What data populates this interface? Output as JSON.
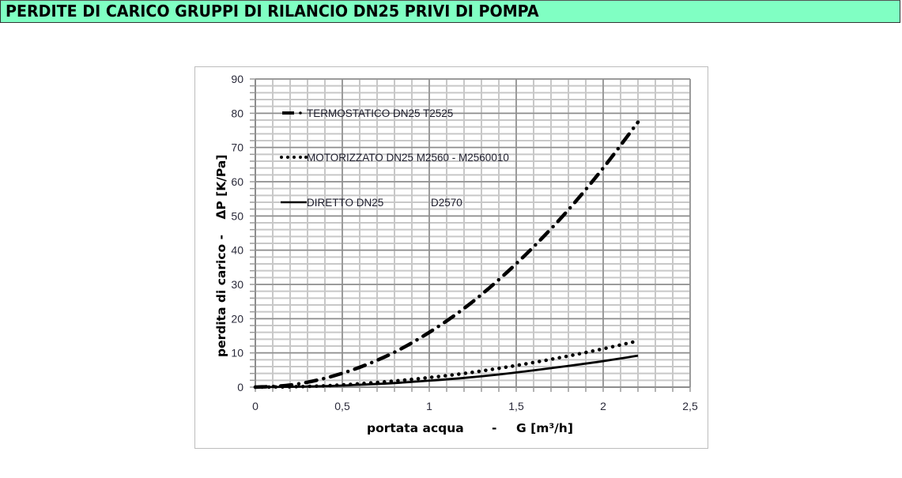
{
  "header": {
    "title": "PERDITE DI CARICO GRUPPI DI RILANCIO DN25 PRIVI DI POMPA",
    "background_color": "#80FFC3"
  },
  "chart_data": {
    "type": "line",
    "title": "PERDITE DI CARICO GRUPPI DI RILANCIO DN25 PRIVI DI POMPA",
    "xlabel": "portata acqua    -    G [m³/h]",
    "ylabel": "perdita di carico  -    ΔP  [K/Pa]",
    "xlim": [
      0,
      2.5
    ],
    "ylim": [
      0,
      90
    ],
    "x_ticks": [
      "0",
      "0,5",
      "1",
      "1,5",
      "2",
      "2,5"
    ],
    "y_ticks": [
      "0",
      "10",
      "20",
      "30",
      "40",
      "50",
      "60",
      "70",
      "80",
      "90"
    ],
    "grid": {
      "major": true,
      "minor": true,
      "x_minor_step": 0.1,
      "y_minor_step": 2
    },
    "legend_position": "inside-top-left",
    "x": [
      0,
      0.2,
      0.4,
      0.6,
      0.8,
      1.0,
      1.2,
      1.4,
      1.6,
      1.8,
      2.0,
      2.2
    ],
    "series": [
      {
        "name": "TERMOSTATICO DN25 T2525",
        "style": "dash-dot",
        "values": [
          0,
          0.6,
          2.6,
          5.8,
          10.2,
          16.0,
          23.0,
          31.4,
          41.0,
          51.8,
          64.0,
          77.4
        ]
      },
      {
        "name": "MOTORIZZATO DN25  M2560 - M2560010",
        "style": "dotted",
        "values": [
          0,
          0.1,
          0.4,
          1.0,
          1.8,
          2.8,
          4.0,
          5.5,
          7.2,
          9.1,
          11.2,
          13.5
        ]
      },
      {
        "name": "DIRETTO DN25            D2570",
        "style": "solid",
        "values": [
          0,
          0.1,
          0.3,
          0.7,
          1.2,
          1.9,
          2.7,
          3.7,
          4.9,
          6.2,
          7.6,
          9.2
        ]
      }
    ]
  },
  "legend": {
    "items": [
      {
        "label": "TERMOSTATICO DN25 T2525"
      },
      {
        "label": "MOTORIZZATO DN25  M2560 - M2560010"
      },
      {
        "label": "DIRETTO DN25",
        "code": "D2570"
      }
    ]
  },
  "axes": {
    "x_title_part1": "portata acqua",
    "x_title_sep": "-",
    "x_title_part2": "G [m³/h]",
    "y_title_part1": "perdita di carico  -",
    "y_title_part2": "ΔP  [K/Pa]"
  }
}
